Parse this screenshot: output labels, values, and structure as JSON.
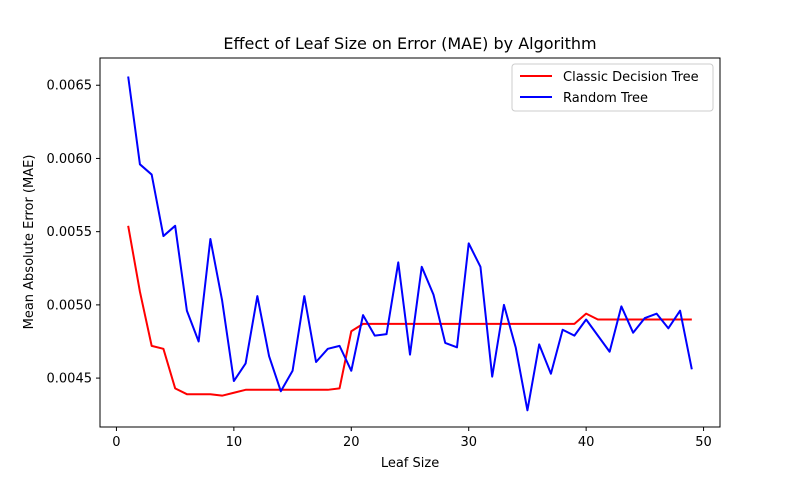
{
  "chart_data": {
    "type": "line",
    "title": "Effect of Leaf Size on Error (MAE) by Algorithm",
    "xlabel": "Leaf Size",
    "ylabel": "Mean Absolute Error (MAE)",
    "xlim": [
      -1.4,
      51.4
    ],
    "ylim": [
      0.004166,
      0.006686
    ],
    "xticks": [
      0,
      10,
      20,
      30,
      40,
      50
    ],
    "yticks": [
      0.0045,
      0.005,
      0.0055,
      0.006,
      0.0065
    ],
    "ytick_labels": [
      "0.0045",
      "0.0050",
      "0.0055",
      "0.0060",
      "0.0065"
    ],
    "grid": false,
    "legend_position": "top-right",
    "series": [
      {
        "name": "Classic Decision Tree",
        "color": "#ff0000",
        "x": [
          1,
          2,
          3,
          4,
          5,
          6,
          7,
          8,
          9,
          10,
          11,
          12,
          13,
          14,
          15,
          16,
          17,
          18,
          19,
          20,
          21,
          22,
          23,
          24,
          25,
          26,
          27,
          28,
          29,
          30,
          31,
          32,
          33,
          34,
          35,
          36,
          37,
          38,
          39,
          40,
          41,
          42,
          43,
          44,
          45,
          46,
          47,
          48,
          49
        ],
        "y": [
          0.00554,
          0.00509,
          0.00472,
          0.0047,
          0.00443,
          0.00439,
          0.00439,
          0.00439,
          0.00438,
          0.0044,
          0.00442,
          0.00442,
          0.00442,
          0.00442,
          0.00442,
          0.00442,
          0.00442,
          0.00442,
          0.00443,
          0.00482,
          0.00487,
          0.00487,
          0.00487,
          0.00487,
          0.00487,
          0.00487,
          0.00487,
          0.00487,
          0.00487,
          0.00487,
          0.00487,
          0.00487,
          0.00487,
          0.00487,
          0.00487,
          0.00487,
          0.00487,
          0.00487,
          0.00487,
          0.00494,
          0.0049,
          0.0049,
          0.0049,
          0.0049,
          0.0049,
          0.0049,
          0.0049,
          0.0049,
          0.0049
        ]
      },
      {
        "name": "Random Tree",
        "color": "#0000ff",
        "x": [
          1,
          2,
          3,
          4,
          5,
          6,
          7,
          8,
          9,
          10,
          11,
          12,
          13,
          14,
          15,
          16,
          17,
          18,
          19,
          20,
          21,
          22,
          23,
          24,
          25,
          26,
          27,
          28,
          29,
          30,
          31,
          32,
          33,
          34,
          35,
          36,
          37,
          38,
          39,
          40,
          41,
          42,
          43,
          44,
          45,
          46,
          47,
          48,
          49
        ],
        "y": [
          0.00656,
          0.00596,
          0.00589,
          0.00547,
          0.00554,
          0.00496,
          0.00475,
          0.00545,
          0.00503,
          0.00448,
          0.0046,
          0.00506,
          0.00465,
          0.00441,
          0.00455,
          0.00506,
          0.00461,
          0.0047,
          0.00472,
          0.00455,
          0.00493,
          0.00479,
          0.0048,
          0.00529,
          0.00466,
          0.00526,
          0.00507,
          0.00474,
          0.00471,
          0.00542,
          0.00526,
          0.00451,
          0.005,
          0.00471,
          0.00428,
          0.00473,
          0.00453,
          0.00483,
          0.00479,
          0.0049,
          0.00479,
          0.00468,
          0.00499,
          0.00481,
          0.00491,
          0.00494,
          0.00484,
          0.00496,
          0.00456
        ]
      }
    ]
  }
}
